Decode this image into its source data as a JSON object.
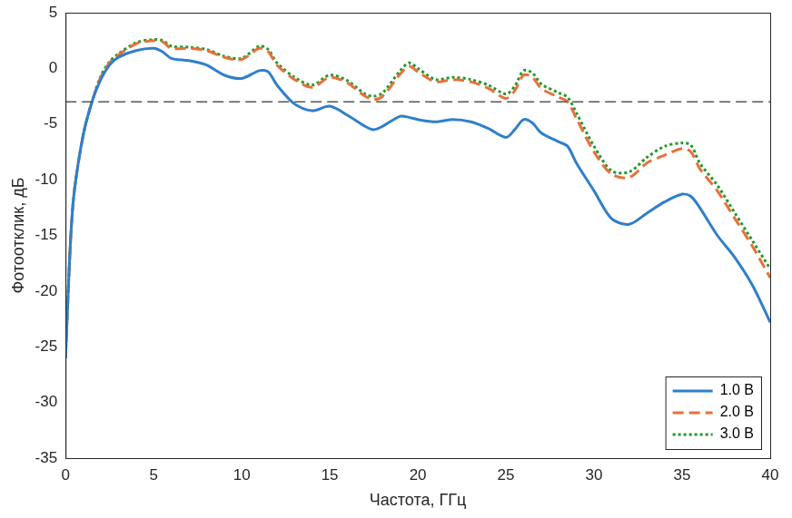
{
  "chart_data": {
    "type": "line",
    "x_label": "Частота, ГГц",
    "y_label": "Фотоотклик, дБ",
    "x": [
      0,
      0.1,
      0.3,
      0.5,
      1,
      1.5,
      2,
      2.5,
      3,
      4,
      5,
      5.5,
      6,
      7,
      8,
      9,
      10,
      11,
      11.5,
      12,
      13,
      14,
      15,
      16,
      17,
      17.5,
      18,
      19,
      19.5,
      20,
      21,
      22,
      23,
      24,
      25,
      25.5,
      26,
      26.5,
      27,
      28,
      28.5,
      29,
      30,
      31,
      32,
      33,
      34,
      35,
      35.5,
      36,
      37,
      38,
      39,
      40
    ],
    "series": [
      {
        "name": "1.0 В",
        "color": "#2f7fcc",
        "line_style": "solid",
        "values": [
          -26,
          -22,
          -15,
          -11,
          -6,
          -3,
          -1,
          0.3,
          1,
          1.6,
          1.8,
          1.5,
          0.9,
          0.7,
          0.3,
          -0.6,
          -0.9,
          -0.2,
          -0.3,
          -1.5,
          -3.2,
          -3.8,
          -3.4,
          -4.2,
          -5.2,
          -5.5,
          -5.2,
          -4.3,
          -4.4,
          -4.6,
          -4.8,
          -4.6,
          -4.8,
          -5.4,
          -6.2,
          -5.5,
          -4.6,
          -4.9,
          -5.8,
          -6.6,
          -7,
          -8.5,
          -11,
          -13.5,
          -14,
          -13,
          -12,
          -11.3,
          -11.5,
          -12.5,
          -15,
          -17,
          -19.5,
          -22.8
        ]
      },
      {
        "name": "2.0 В",
        "color": "#e8703a",
        "line_style": "dashed",
        "values": [
          -26,
          -22,
          -15,
          -11,
          -6,
          -3,
          -0.8,
          0.5,
          1.2,
          2.2,
          2.5,
          2.4,
          1.8,
          1.8,
          1.6,
          1,
          0.8,
          1.8,
          1.5,
          0.3,
          -1,
          -1.7,
          -0.8,
          -1.3,
          -2.5,
          -2.8,
          -2.5,
          -0.5,
          0.2,
          -0.3,
          -1.2,
          -1,
          -1.2,
          -1.8,
          -2.7,
          -2,
          -0.6,
          -0.8,
          -1.8,
          -2.6,
          -3,
          -4.5,
          -7.5,
          -9.5,
          -9.8,
          -8.5,
          -7.8,
          -7.2,
          -7.5,
          -9,
          -11,
          -13.5,
          -16,
          -18.8
        ]
      },
      {
        "name": "3.0 В",
        "color": "#1f9a2a",
        "line_style": "dotted",
        "values": [
          -26,
          -22,
          -15,
          -11,
          -6,
          -3,
          -0.7,
          0.6,
          1.3,
          2.3,
          2.6,
          2.5,
          2,
          1.9,
          1.7,
          1.1,
          0.9,
          2,
          1.7,
          0.5,
          -0.8,
          -1.5,
          -0.6,
          -1.1,
          -2.3,
          -2.5,
          -2.2,
          -0.2,
          0.5,
          0,
          -1,
          -0.8,
          -1,
          -1.5,
          -2.3,
          -1.6,
          -0.2,
          -0.4,
          -1.4,
          -2.2,
          -2.6,
          -4,
          -7,
          -9.2,
          -9.3,
          -8,
          -7,
          -6.7,
          -6.9,
          -8.5,
          -10.5,
          -13,
          -15.5,
          -18
        ]
      }
    ],
    "reference_lines": [
      {
        "value": -3,
        "color": "#555555",
        "line_style": "dashed"
      }
    ],
    "xlim": [
      0,
      40
    ],
    "xticks": [
      0,
      5,
      10,
      15,
      20,
      25,
      30,
      35,
      40
    ],
    "ylim": [
      -35,
      5
    ],
    "yticks": [
      -35,
      -30,
      -25,
      -20,
      -15,
      -10,
      -5,
      0,
      5
    ],
    "grid": false,
    "legend": "lower right"
  }
}
